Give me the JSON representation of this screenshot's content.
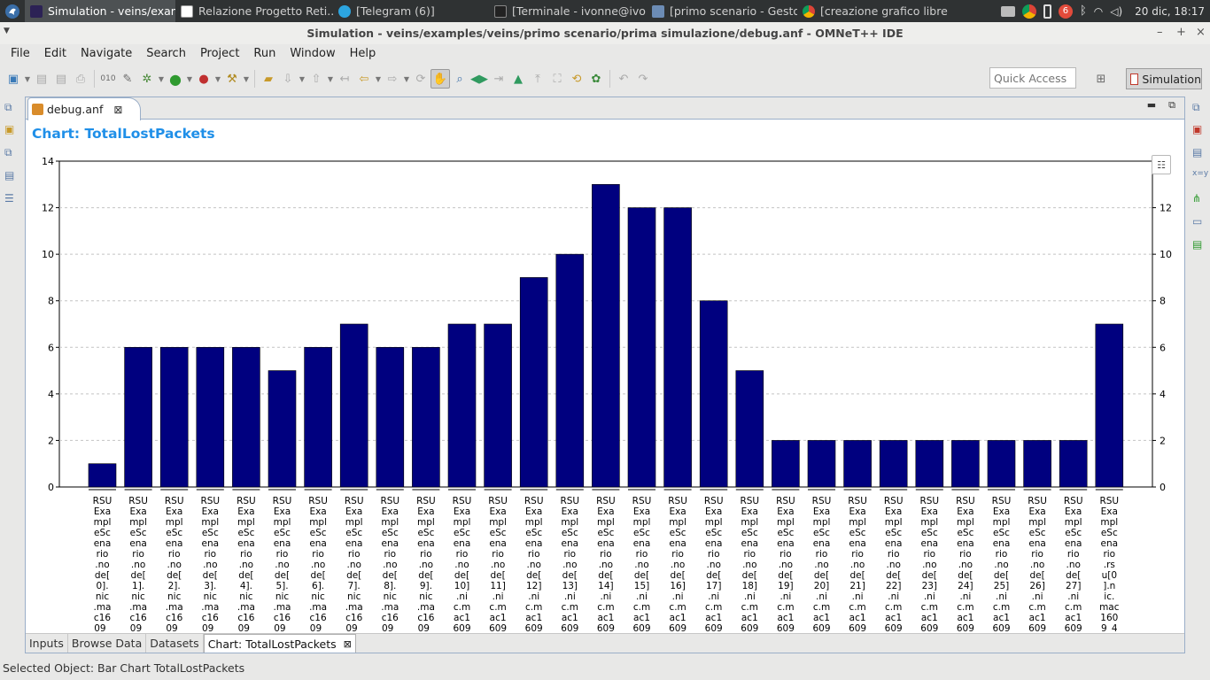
{
  "taskbar": {
    "tasks": [
      {
        "label": "Simulation - veins/exam...",
        "icon": "eclipse-icon",
        "active": true
      },
      {
        "label": "Relazione Progetto Reti...",
        "icon": "document-icon",
        "active": false
      },
      {
        "label": "[Telegram (6)]",
        "icon": "telegram-icon",
        "active": false
      },
      {
        "label": "[Terminale - ivonne@ivo...",
        "icon": "terminal-icon",
        "active": false
      },
      {
        "label": "[primo scenario - Gestor...",
        "icon": "folder-icon",
        "active": false
      },
      {
        "label": "[creazione grafico libre c...",
        "icon": "chrome-icon",
        "active": false
      }
    ],
    "clock": "20 dic, 18:17",
    "notification_count": "6"
  },
  "window": {
    "title": "Simulation - veins/examples/veins/primo scenario/prima simulazione/debug.anf - OMNeT++ IDE"
  },
  "menu": [
    "File",
    "Edit",
    "Navigate",
    "Search",
    "Project",
    "Run",
    "Window",
    "Help"
  ],
  "toolbar": {
    "quick_access_placeholder": "Quick Access",
    "perspective_label": "Simulation"
  },
  "editor": {
    "tab_label": "debug.anf",
    "chart_heading": "Chart: TotalLostPackets"
  },
  "bottom_tabs": [
    "Inputs",
    "Browse Data",
    "Datasets",
    "Chart: TotalLostPackets"
  ],
  "status": "Selected Object: Bar Chart TotalLostPackets",
  "colors": {
    "bar": "#00007f",
    "title": "#1f8fe8"
  },
  "chart_data": {
    "type": "bar",
    "title": "",
    "xlabel": "",
    "ylabel": "",
    "ylim": [
      0,
      14
    ],
    "yticks": [
      0,
      2,
      4,
      6,
      8,
      10,
      12,
      14
    ],
    "grid": true,
    "categories": [
      "RSUExampleScenario.node[0].nic.mac1609_4",
      "RSUExampleScenario.node[1].nic.mac1609_4",
      "RSUExampleScenario.node[2].nic.mac1609_4",
      "RSUExampleScenario.node[3].nic.mac1609_4",
      "RSUExampleScenario.node[4].nic.mac1609_4",
      "RSUExampleScenario.node[5].nic.mac1609_4",
      "RSUExampleScenario.node[6].nic.mac1609_4",
      "RSUExampleScenario.node[7].nic.mac1609_4",
      "RSUExampleScenario.node[8].nic.mac1609_4",
      "RSUExampleScenario.node[9].nic.mac1609_4",
      "RSUExampleScenario.node[10].nic.mac1609_4",
      "RSUExampleScenario.node[11].nic.mac1609_4",
      "RSUExampleScenario.node[12].nic.mac1609_4",
      "RSUExampleScenario.node[13].nic.mac1609_4",
      "RSUExampleScenario.node[14].nic.mac1609_4",
      "RSUExampleScenario.node[15].nic.mac1609_4",
      "RSUExampleScenario.node[16].nic.mac1609_4",
      "RSUExampleScenario.node[17].nic.mac1609_4",
      "RSUExampleScenario.node[18].nic.mac1609_4",
      "RSUExampleScenario.node[19].nic.mac1609_4",
      "RSUExampleScenario.node[20].nic.mac1609_4",
      "RSUExampleScenario.node[21].nic.mac1609_4",
      "RSUExampleScenario.node[22].nic.mac1609_4",
      "RSUExampleScenario.node[23].nic.mac1609_4",
      "RSUExampleScenario.node[24].nic.mac1609_4",
      "RSUExampleScenario.node[25].nic.mac1609_4",
      "RSUExampleScenario.node[26].nic.mac1609_4",
      "RSUExampleScenario.node[27].nic.mac1609_4",
      "RSUExampleScenario.rsu[0].nic.mac1609_4"
    ],
    "values": [
      1,
      6,
      6,
      6,
      6,
      5,
      6,
      7,
      6,
      6,
      7,
      7,
      9,
      10,
      13,
      12,
      12,
      8,
      5,
      2,
      2,
      2,
      2,
      2,
      2,
      2,
      2,
      2,
      7
    ]
  }
}
